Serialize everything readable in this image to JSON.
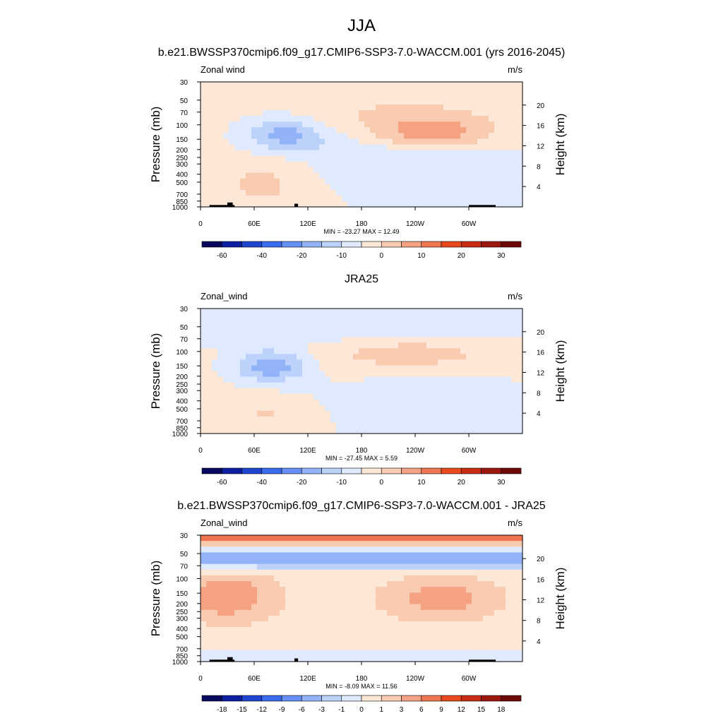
{
  "figure": {
    "title": "JJA",
    "colors": {
      "background": "#ffffff",
      "axis": "#000000",
      "land": "#000000"
    }
  },
  "chart_data": [
    {
      "type": "heatmap",
      "title": "b.e21.BWSSP370cmip6.f09_g17.CMIP6-SSP3-7.0-WACCM.001 (yrs 2016-2045)",
      "left_label": "Zonal wind",
      "right_label": "m/s",
      "ylabel": "Pressure (mb)",
      "ylabel_right": "Height (km)",
      "x_ticks": [
        "0",
        "60E",
        "120E",
        "180",
        "120W",
        "60W"
      ],
      "y_ticks": [
        "30",
        "50",
        "70",
        "100",
        "150",
        "200",
        "250",
        "300",
        "400",
        "500",
        "700",
        "850",
        "1000"
      ],
      "y_right_ticks": [
        "20",
        "16",
        "12",
        "8",
        "4"
      ],
      "stats": "MIN = -23.27  MAX =  12.49",
      "colorbar": {
        "labels": [
          "-60",
          "-40",
          "-20",
          "-10",
          "0",
          "10",
          "20",
          "30"
        ],
        "colors": [
          "#08085e",
          "#0b1fa0",
          "#1f45d0",
          "#3a6cf0",
          "#6690f5",
          "#93b3f8",
          "#bcd2fb",
          "#dfeaff",
          "#fde7d6",
          "#f9cbb0",
          "#f4a283",
          "#ef7650",
          "#e84a1d",
          "#c82d14",
          "#9c180f",
          "#6b0806"
        ]
      },
      "show_land": true,
      "fields": [
        {
          "val": 0.3,
          "cx": 0.5,
          "cy": 0.3,
          "sx": 0.9,
          "sy": 0.2
        },
        {
          "val": -1.2,
          "cx": 0.6,
          "cy": 0.55,
          "sx": 0.25,
          "sy": 0.2
        },
        {
          "val": -2.8,
          "cx": 0.26,
          "cy": 0.42,
          "sx": 0.09,
          "sy": 0.1
        },
        {
          "val": 2.6,
          "cx": 0.72,
          "cy": 0.42,
          "sx": 0.12,
          "sy": 0.09
        },
        {
          "val": 1.3,
          "cx": 0.2,
          "cy": 0.8,
          "sx": 0.12,
          "sy": 0.2
        },
        {
          "val": 1.2,
          "cx": 0.6,
          "cy": 0.3,
          "sx": 0.25,
          "sy": 0.15
        }
      ]
    },
    {
      "type": "heatmap",
      "title": "JRA25",
      "left_label": "Zonal_wind",
      "right_label": "m/s",
      "ylabel": "Pressure (mb)",
      "ylabel_right": "Height (km)",
      "x_ticks": [
        "0",
        "60E",
        "120E",
        "180",
        "120W",
        "60W"
      ],
      "y_ticks": [
        "30",
        "50",
        "70",
        "100",
        "150",
        "200",
        "250",
        "300",
        "400",
        "500",
        "700",
        "850",
        "1000"
      ],
      "y_right_ticks": [
        "20",
        "16",
        "12",
        "8",
        "4"
      ],
      "stats": "MIN = -27.45  MAX =   5.59",
      "colorbar": {
        "labels": [
          "-60",
          "-40",
          "-20",
          "-10",
          "0",
          "10",
          "20",
          "30"
        ],
        "colors": [
          "#08085e",
          "#0b1fa0",
          "#1f45d0",
          "#3a6cf0",
          "#6690f5",
          "#93b3f8",
          "#bcd2fb",
          "#dfeaff",
          "#fde7d6",
          "#f9cbb0",
          "#f4a283",
          "#ef7650",
          "#e84a1d",
          "#c82d14",
          "#9c180f",
          "#6b0806"
        ]
      },
      "show_land": false,
      "fields": [
        {
          "val": 0.3,
          "cx": 0.5,
          "cy": 0.35,
          "sx": 0.9,
          "sy": 0.3
        },
        {
          "val": -1.3,
          "cx": 0.45,
          "cy": 0.15,
          "sx": 0.5,
          "sy": 0.1
        },
        {
          "val": -3.0,
          "cx": 0.22,
          "cy": 0.46,
          "sx": 0.08,
          "sy": 0.09
        },
        {
          "val": 1.3,
          "cx": 0.65,
          "cy": 0.35,
          "sx": 0.2,
          "sy": 0.12
        },
        {
          "val": -1.0,
          "cx": 0.7,
          "cy": 0.7,
          "sx": 0.2,
          "sy": 0.15
        },
        {
          "val": 1.0,
          "cx": 0.2,
          "cy": 0.85,
          "sx": 0.1,
          "sy": 0.1
        }
      ]
    },
    {
      "type": "heatmap",
      "title": "b.e21.BWSSP370cmip6.f09_g17.CMIP6-SSP3-7.0-WACCM.001 - JRA25",
      "left_label": "Zonal_wind",
      "right_label": "m/s",
      "ylabel": "Pressure (mb)",
      "ylabel_right": "Height (km)",
      "x_ticks": [
        "0",
        "60E",
        "120E",
        "180",
        "120W",
        "60W"
      ],
      "y_ticks": [
        "30",
        "50",
        "70",
        "100",
        "150",
        "200",
        "250",
        "300",
        "400",
        "500",
        "700",
        "850",
        "1000"
      ],
      "y_right_ticks": [
        "20",
        "16",
        "12",
        "8",
        "4"
      ],
      "stats": "MIN =  -8.09  MAX =  11.56",
      "colorbar": {
        "labels": [
          "-18",
          "-15",
          "-12",
          "-9",
          "-6",
          "-3",
          "-1",
          "0",
          "1",
          "3",
          "6",
          "9",
          "12",
          "15",
          "18"
        ],
        "colors": [
          "#08085e",
          "#0b1fa0",
          "#1f45d0",
          "#3a6cf0",
          "#6690f5",
          "#93b3f8",
          "#bcd2fb",
          "#dfeaff",
          "#fde7d6",
          "#f9cbb0",
          "#f4a283",
          "#ef7650",
          "#e84a1d",
          "#c82d14",
          "#9c180f",
          "#6b0806"
        ]
      },
      "show_land": true,
      "fields": [
        {
          "val": 0.6,
          "cx": 0.5,
          "cy": 0.5,
          "sx": 0.9,
          "sy": 0.5
        },
        {
          "val": -3.5,
          "cx": 0.5,
          "cy": 0.19,
          "sx": 1.2,
          "sy": 0.055
        },
        {
          "val": 4.0,
          "cx": 0.5,
          "cy": 0.0,
          "sx": 1.2,
          "sy": 0.05
        },
        {
          "val": 2.4,
          "cx": 0.08,
          "cy": 0.48,
          "sx": 0.1,
          "sy": 0.14
        },
        {
          "val": 2.0,
          "cx": 0.75,
          "cy": 0.5,
          "sx": 0.12,
          "sy": 0.12
        },
        {
          "val": -0.9,
          "cx": 0.5,
          "cy": 0.95,
          "sx": 0.5,
          "sy": 0.05
        }
      ]
    }
  ]
}
